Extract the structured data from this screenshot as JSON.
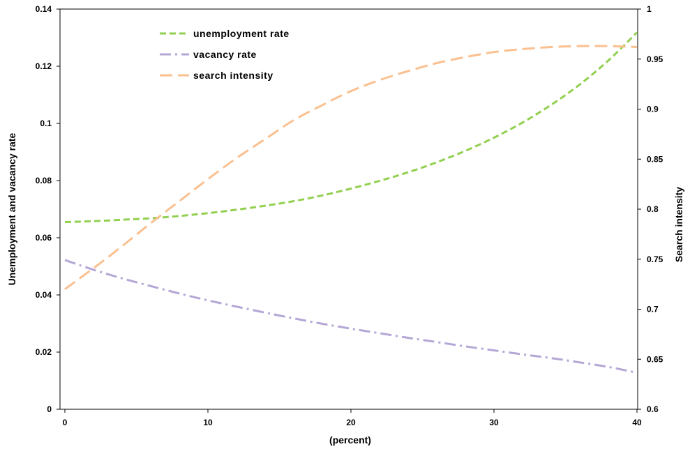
{
  "chart_data": {
    "type": "line",
    "title": "",
    "xlabel": "(percent)",
    "ylabel_left": "Unemployment and vacancy rate",
    "ylabel_right": "Search intensity",
    "xlim": [
      0,
      40
    ],
    "ylim_left": [
      0,
      0.14
    ],
    "ylim_right": [
      0.6,
      1
    ],
    "x_ticks": [
      "0",
      "10",
      "20",
      "30",
      "40"
    ],
    "y_ticks_left": [
      "0",
      "0.02",
      "0.04",
      "0.06",
      "0.08",
      "0.1",
      "0.12",
      "0.14"
    ],
    "y_ticks_right": [
      "0.6",
      "0.65",
      "0.7",
      "0.75",
      "0.8",
      "0.85",
      "0.9",
      "0.95",
      "1"
    ],
    "grid": false,
    "legend": "top-left",
    "x": [
      0,
      2,
      4,
      6,
      8,
      10,
      12,
      14,
      16,
      18,
      20,
      22,
      24,
      26,
      28,
      30,
      32,
      34,
      36,
      38,
      40
    ],
    "series": [
      {
        "name": "unemployment rate",
        "axis": "left",
        "color": "#92D050",
        "style": "short-dash",
        "values": [
          0.0655,
          0.0658,
          0.0663,
          0.0668,
          0.0676,
          0.0686,
          0.0698,
          0.0712,
          0.0728,
          0.0748,
          0.0772,
          0.0799,
          0.0829,
          0.0864,
          0.0904,
          0.095,
          0.1003,
          0.1065,
          0.1136,
          0.122,
          0.1318
        ]
      },
      {
        "name": "vacancy rate",
        "axis": "left",
        "color": "#B4A7D6",
        "style": "dash-dot",
        "values": [
          0.0522,
          0.0488,
          0.0458,
          0.0431,
          0.0405,
          0.0381,
          0.0359,
          0.0338,
          0.0318,
          0.0299,
          0.0282,
          0.0266,
          0.025,
          0.0235,
          0.022,
          0.0206,
          0.0192,
          0.0179,
          0.0164,
          0.0148,
          0.0128
        ]
      },
      {
        "name": "search intensity",
        "axis": "right",
        "color": "#FAC090",
        "style": "long-dash",
        "values": [
          0.72,
          0.741,
          0.763,
          0.786,
          0.808,
          0.83,
          0.851,
          0.87,
          0.889,
          0.904,
          0.918,
          0.929,
          0.938,
          0.946,
          0.952,
          0.957,
          0.96,
          0.962,
          0.963,
          0.963,
          0.962
        ]
      }
    ]
  }
}
